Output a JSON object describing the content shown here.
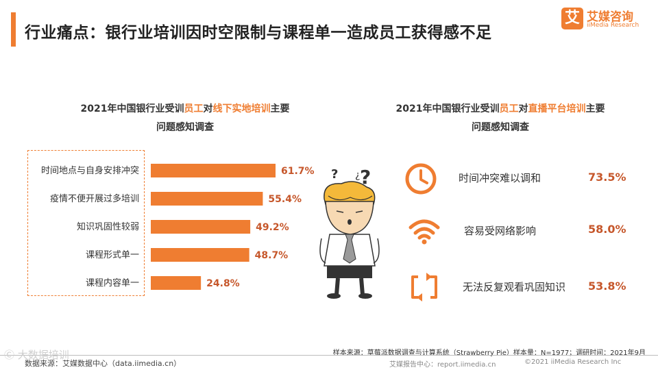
{
  "header": {
    "title": "行业痛点：银行业培训因时空限制与课程单一造成员工获得感不足",
    "logo_mark": "艾",
    "logo_cn": "艾媒咨询",
    "logo_en": "iiMedia Research"
  },
  "left_chart": {
    "title_line1_a": "2021年中国银行业受训",
    "title_line1_hl1": "员工",
    "title_line1_b": "对",
    "title_line1_hl2": "线下实地培训",
    "title_line1_c": "主要",
    "title_line2": "问题感知调查"
  },
  "right_chart": {
    "title_line1_a": "2021年中国银行业受训",
    "title_line1_hl1": "员工",
    "title_line1_b": "对",
    "title_line1_hl2": "直播平台培训",
    "title_line1_c": "主要",
    "title_line2": "问题感知调查",
    "items": [
      {
        "icon": "clock-icon",
        "label": "时间冲突难以调和",
        "value": "73.5%"
      },
      {
        "icon": "wifi-icon",
        "label": "容易受网络影响",
        "value": "58.0%"
      },
      {
        "icon": "repeat-icon",
        "label": "无法反复观看巩固知识",
        "value": "53.8%"
      }
    ]
  },
  "chart_data": [
    {
      "type": "bar",
      "orientation": "horizontal",
      "categories": [
        "时间地点与自身安排冲突",
        "疫情不便开展过多培训",
        "知识巩固性较弱",
        "课程形式单一",
        "课程内容单一"
      ],
      "values": [
        61.7,
        55.4,
        49.2,
        48.7,
        24.8
      ],
      "value_labels": [
        "61.7%",
        "55.4%",
        "49.2%",
        "48.7%",
        "24.8%"
      ],
      "unit": "%",
      "color": "#ef7d31",
      "label_color": "#c6572b"
    },
    {
      "type": "table",
      "categories": [
        "时间冲突难以调和",
        "容易受网络影响",
        "无法反复观看巩固知识"
      ],
      "values": [
        73.5,
        58.0,
        53.8
      ],
      "unit": "%"
    }
  ],
  "footer": {
    "source": "样本来源：草莓派数据调查与计算系统（Strawberry Pie）样本量：N=1977；调研时间：2021年9月",
    "data_source": "数据来源：艾媒数据中心（data.iimedia.cn）",
    "report_center": "艾媒报告中心：report.iimedia.cn",
    "copyright": "©2021  iiMedia Research  Inc",
    "watermark": "Ⓒ 大数据培训"
  },
  "colors": {
    "accent": "#ef7d31",
    "value_text": "#c6572b"
  }
}
